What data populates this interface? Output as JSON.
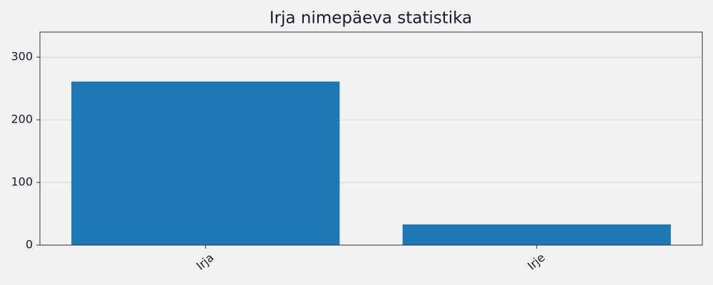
{
  "chart_data": {
    "type": "bar",
    "title": "Irja nimepäeva statistika",
    "categories": [
      "Irja",
      "Irje"
    ],
    "values": [
      261,
      33
    ],
    "color": "#1f77b4",
    "ylim": [
      0,
      340
    ],
    "yticks": [
      0,
      100,
      200,
      300
    ],
    "grid": true
  }
}
